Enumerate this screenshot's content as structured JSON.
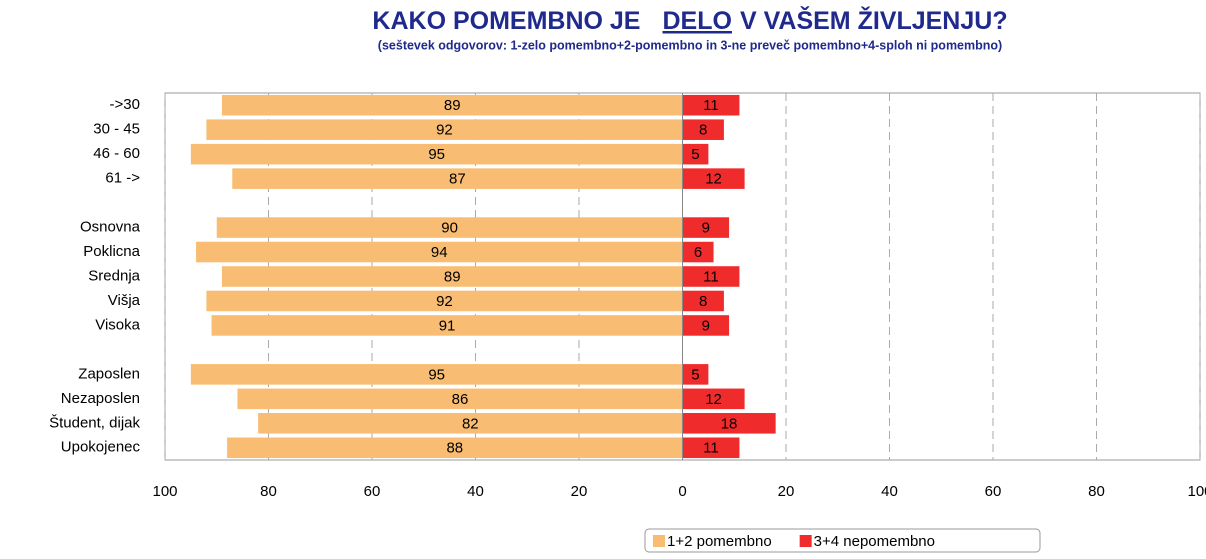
{
  "chart_data": {
    "type": "diverging_bar",
    "title": [
      "KAKO POMEMBNO JE",
      "DELO",
      "V VAŠEM ŽIVLJENJU?"
    ],
    "subtitle": "(seštevek odgovorov: 1-zelo pomembno+2-pomembno in 3-ne preveč pomembno+4-sploh ni pomembno)",
    "categories": [
      "->30",
      "30 - 45",
      "46 - 60",
      "61 ->",
      null,
      "Osnovna",
      "Poklicna",
      "Srednja",
      "Višja",
      "Visoka",
      null,
      "Zaposlen",
      "Nezaposlen",
      "Študent, dijak",
      "Upokojenec"
    ],
    "series": [
      {
        "name": "1+2 pomembno",
        "color": "#f8bd72",
        "values": [
          -89,
          -92,
          -95,
          -87,
          null,
          -90,
          -94,
          -89,
          -92,
          -91,
          null,
          -95,
          -86,
          -82,
          -88
        ],
        "value_labels": [
          "89",
          "92",
          "95",
          "87",
          null,
          "90",
          "94",
          "89",
          "92",
          "91",
          null,
          "95",
          "86",
          "82",
          "88"
        ]
      },
      {
        "name": "3+4 nepomembno",
        "color": "#f02b2b",
        "values": [
          11,
          8,
          5,
          12,
          null,
          9,
          6,
          11,
          8,
          9,
          null,
          5,
          12,
          18,
          11
        ]
      }
    ],
    "xlim": [
      -100,
      100
    ],
    "xticks": [
      {
        "value": -100,
        "label": "100"
      },
      {
        "value": -80,
        "label": "80"
      },
      {
        "value": -60,
        "label": "60"
      },
      {
        "value": -40,
        "label": "40"
      },
      {
        "value": -20,
        "label": "20"
      },
      0,
      20,
      40,
      60,
      80,
      100
    ],
    "grid": true,
    "legend": "bottom"
  }
}
